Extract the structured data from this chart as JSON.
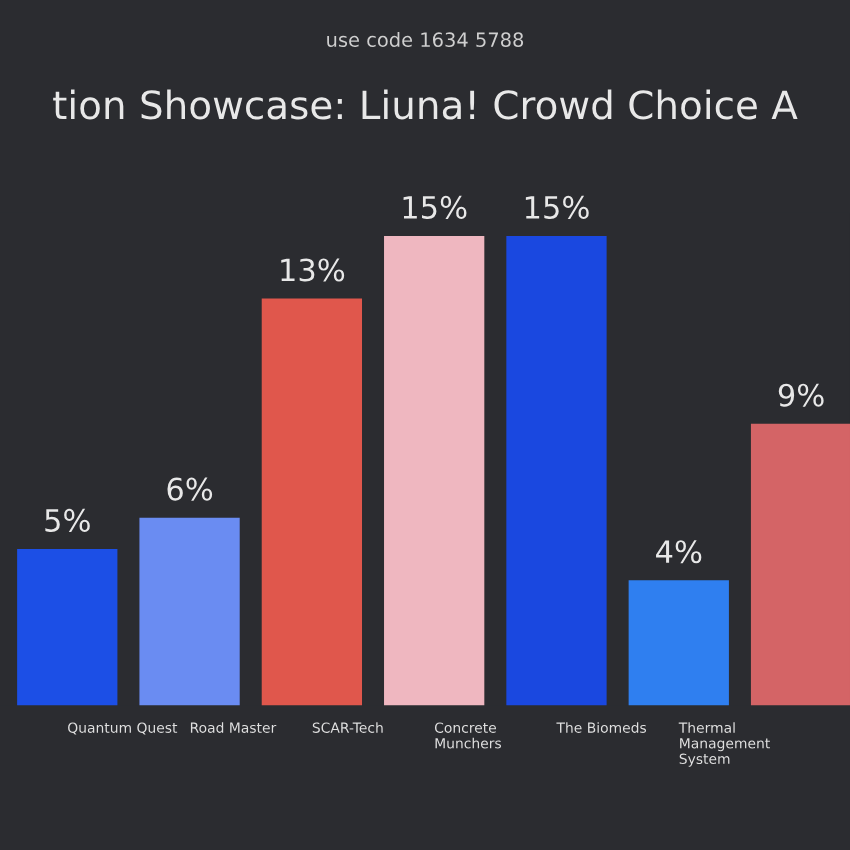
{
  "chart_data": {
    "type": "bar",
    "title": "tion Showcase: Liuna! Crowd Choice A",
    "categories": [
      "Quantum Quest",
      "Road Master",
      "SCAR-Tech",
      "Concrete\nMunchers",
      "The Biomeds",
      "Thermal\nManagement\nSystem",
      null
    ],
    "values": [
      5,
      6,
      13,
      15,
      15,
      4,
      9
    ],
    "colors": [
      "#1c4fe6",
      "#6a8cf2",
      "#e0574c",
      "#efb7c0",
      "#1a48e0",
      "#2f7ff0",
      "#d46466"
    ],
    "value_labels": [
      "5%",
      "6%",
      "13%",
      "15%",
      "15%",
      "4%",
      "9%"
    ],
    "annotations": [
      "use code 1634 5788"
    ]
  }
}
